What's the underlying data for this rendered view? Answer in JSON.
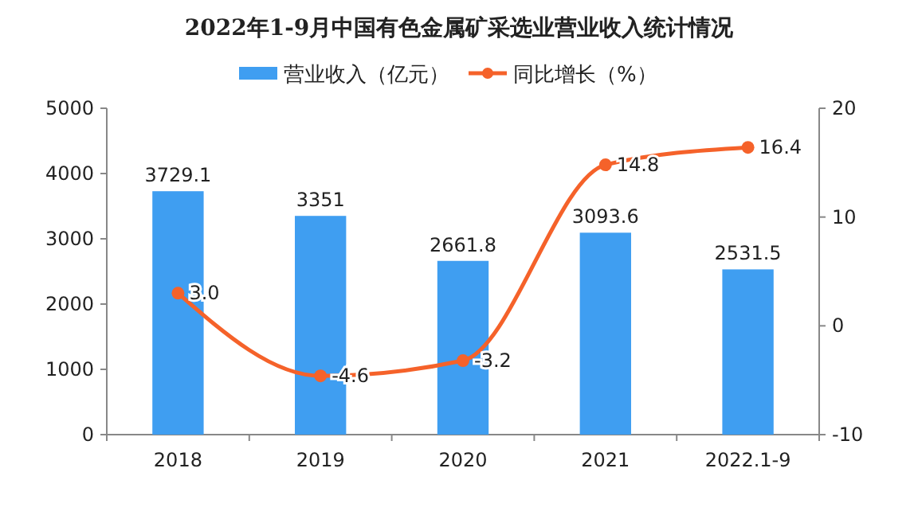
{
  "chart_data": {
    "type": "bar",
    "title": "2022年1-9月中国有色金属矿采选业营业收入统计情况",
    "categories": [
      "2018",
      "2019",
      "2020",
      "2021",
      "2022.1-9"
    ],
    "series": [
      {
        "name": "营业收入（亿元）",
        "color": "#3f9ef1",
        "values": [
          3729.1,
          3351,
          2661.8,
          3093.6,
          2531.5
        ]
      },
      {
        "name": "同比增长（%）",
        "type": "line",
        "axis": "y2",
        "color": "#f5622a",
        "values": [
          3.0,
          -4.6,
          -3.2,
          14.8,
          16.4
        ],
        "value_labels": [
          "3.0",
          "-4.6",
          "-3.2",
          "14.8",
          "16.4"
        ]
      }
    ],
    "ylim": [
      0,
      5000
    ],
    "yticks": [
      0,
      1000,
      2000,
      3000,
      4000,
      5000
    ],
    "y2lim": [
      -10,
      20
    ],
    "y2ticks": [
      -10,
      0,
      10,
      20
    ],
    "data_labels": true,
    "legend": "top",
    "grid": false,
    "marker": "circle",
    "line_style": "solid"
  }
}
